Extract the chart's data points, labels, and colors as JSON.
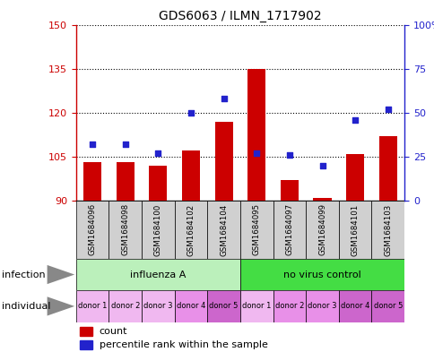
{
  "title": "GDS6063 / ILMN_1717902",
  "samples": [
    "GSM1684096",
    "GSM1684098",
    "GSM1684100",
    "GSM1684102",
    "GSM1684104",
    "GSM1684095",
    "GSM1684097",
    "GSM1684099",
    "GSM1684101",
    "GSM1684103"
  ],
  "bar_values": [
    103,
    103,
    102,
    107,
    117,
    135,
    97,
    91,
    106,
    112
  ],
  "percentile_values": [
    32,
    32,
    27,
    50,
    58,
    27,
    26,
    20,
    46,
    52
  ],
  "ylim_left": [
    90,
    150
  ],
  "ylim_right": [
    0,
    100
  ],
  "yticks_left": [
    90,
    105,
    120,
    135,
    150
  ],
  "yticks_right": [
    0,
    25,
    50,
    75,
    100
  ],
  "bar_color": "#cc0000",
  "dot_color": "#2222cc",
  "grid_color": "#000000",
  "infection_groups": [
    {
      "label": "influenza A",
      "start": 0,
      "end": 5,
      "color": "#bbf0bb"
    },
    {
      "label": "no virus control",
      "start": 5,
      "end": 10,
      "color": "#44dd44"
    }
  ],
  "individual_labels": [
    "donor 1",
    "donor 2",
    "donor 3",
    "donor 4",
    "donor 5",
    "donor 1",
    "donor 2",
    "donor 3",
    "donor 4",
    "donor 5"
  ],
  "individual_colors": [
    "#f0b8f0",
    "#f0b8f0",
    "#f0b8f0",
    "#e890e8",
    "#cc66cc",
    "#f0b8f0",
    "#e890e8",
    "#e890e8",
    "#cc66cc",
    "#cc66cc"
  ],
  "bg_color": "#ffffff",
  "tick_label_color_left": "#cc0000",
  "tick_label_color_right": "#2222cc",
  "label_infection": "infection",
  "label_individual": "individual",
  "legend_count": "count",
  "legend_percentile": "percentile rank within the sample",
  "sample_box_color": "#d0d0d0",
  "arrow_color": "#888888"
}
